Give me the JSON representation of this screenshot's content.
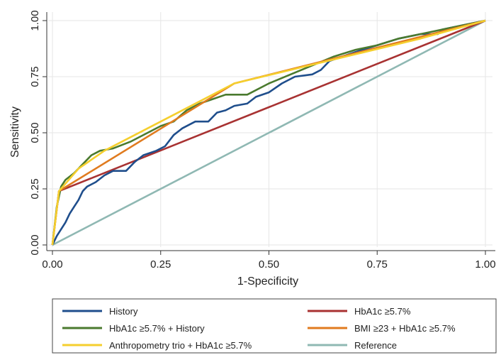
{
  "chart_data": {
    "type": "line",
    "title": "",
    "xlabel": "1-Specificity",
    "ylabel": "Sensitivity",
    "xlim": [
      0,
      1
    ],
    "ylim": [
      0,
      1
    ],
    "xticks": [
      "0.00",
      "0.25",
      "0.50",
      "0.75",
      "1.00"
    ],
    "yticks": [
      "0.00",
      "0.25",
      "0.50",
      "0.75",
      "1.00"
    ],
    "grid": true,
    "legend_position": "bottom",
    "series": [
      {
        "name": "History",
        "color": "#1f4e8c",
        "points": [
          [
            0,
            0
          ],
          [
            0.01,
            0.04
          ],
          [
            0.02,
            0.07
          ],
          [
            0.03,
            0.1
          ],
          [
            0.04,
            0.14
          ],
          [
            0.05,
            0.17
          ],
          [
            0.06,
            0.2
          ],
          [
            0.07,
            0.24
          ],
          [
            0.08,
            0.26
          ],
          [
            0.1,
            0.28
          ],
          [
            0.12,
            0.31
          ],
          [
            0.14,
            0.33
          ],
          [
            0.17,
            0.33
          ],
          [
            0.19,
            0.37
          ],
          [
            0.21,
            0.4
          ],
          [
            0.24,
            0.42
          ],
          [
            0.26,
            0.44
          ],
          [
            0.28,
            0.49
          ],
          [
            0.3,
            0.52
          ],
          [
            0.33,
            0.55
          ],
          [
            0.36,
            0.55
          ],
          [
            0.38,
            0.59
          ],
          [
            0.4,
            0.6
          ],
          [
            0.42,
            0.62
          ],
          [
            0.45,
            0.63
          ],
          [
            0.47,
            0.66
          ],
          [
            0.5,
            0.68
          ],
          [
            0.53,
            0.72
          ],
          [
            0.56,
            0.75
          ],
          [
            0.6,
            0.76
          ],
          [
            0.62,
            0.78
          ],
          [
            0.64,
            0.82
          ],
          [
            0.7,
            0.86
          ],
          [
            0.75,
            0.89
          ],
          [
            0.8,
            0.92
          ],
          [
            0.85,
            0.94
          ],
          [
            0.89,
            0.94
          ],
          [
            0.9,
            0.96
          ],
          [
            0.95,
            0.98
          ],
          [
            1,
            1
          ]
        ]
      },
      {
        "name": "HbA1c ≥5.7%",
        "color": "#a83232",
        "points": [
          [
            0,
            0
          ],
          [
            0.015,
            0.24
          ],
          [
            1,
            1
          ]
        ]
      },
      {
        "name": "HbA1c ≥5.7% + History",
        "color": "#4a7a2e",
        "points": [
          [
            0,
            0
          ],
          [
            0.01,
            0.17
          ],
          [
            0.02,
            0.26
          ],
          [
            0.03,
            0.29
          ],
          [
            0.05,
            0.32
          ],
          [
            0.07,
            0.36
          ],
          [
            0.09,
            0.4
          ],
          [
            0.11,
            0.42
          ],
          [
            0.14,
            0.43
          ],
          [
            0.18,
            0.46
          ],
          [
            0.22,
            0.5
          ],
          [
            0.25,
            0.53
          ],
          [
            0.28,
            0.55
          ],
          [
            0.31,
            0.6
          ],
          [
            0.34,
            0.63
          ],
          [
            0.37,
            0.65
          ],
          [
            0.4,
            0.67
          ],
          [
            0.45,
            0.67
          ],
          [
            0.5,
            0.72
          ],
          [
            0.55,
            0.76
          ],
          [
            0.6,
            0.8
          ],
          [
            0.65,
            0.84
          ],
          [
            0.7,
            0.87
          ],
          [
            0.75,
            0.89
          ],
          [
            0.8,
            0.92
          ],
          [
            0.85,
            0.94
          ],
          [
            0.9,
            0.96
          ],
          [
            0.95,
            0.98
          ],
          [
            1,
            1
          ]
        ]
      },
      {
        "name": "BMI ≥23 + HbA1c ≥5.7%",
        "color": "#e07b1f",
        "points": [
          [
            0,
            0
          ],
          [
            0.015,
            0.24
          ],
          [
            0.42,
            0.72
          ],
          [
            1,
            1
          ]
        ]
      },
      {
        "name": "Anthropometry trio + HbA1c ≥5.7%",
        "color": "#f5cf2e",
        "points": [
          [
            0,
            0
          ],
          [
            0.015,
            0.24
          ],
          [
            0.06,
            0.34
          ],
          [
            0.12,
            0.42
          ],
          [
            0.25,
            0.55
          ],
          [
            0.42,
            0.72
          ],
          [
            0.55,
            0.78
          ],
          [
            0.7,
            0.85
          ],
          [
            0.85,
            0.92
          ],
          [
            1,
            1
          ]
        ]
      },
      {
        "name": "Reference",
        "color": "#8fb8b3",
        "points": [
          [
            0,
            0
          ],
          [
            1,
            1
          ]
        ]
      }
    ]
  }
}
